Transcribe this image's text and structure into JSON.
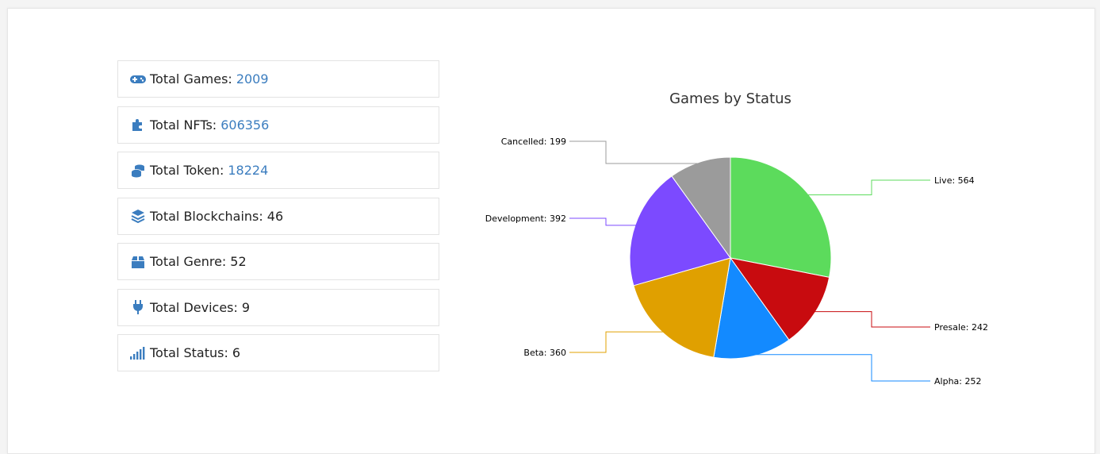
{
  "stats": [
    {
      "label": "Total Games:",
      "value": "2009",
      "icon": "gamepad-icon",
      "value_color": "#3b7dbf"
    },
    {
      "label": "Total NFTs:",
      "value": "606356",
      "icon": "puzzle-piece-icon",
      "value_color": "#3b7dbf"
    },
    {
      "label": "Total Token:",
      "value": "18224",
      "icon": "coins-icon",
      "value_color": "#3b7dbf"
    },
    {
      "label": "Total Blockchains:",
      "value": "46",
      "icon": "layer-group-icon",
      "value_color": "#222222"
    },
    {
      "label": "Total Genre:",
      "value": "52",
      "icon": "box-icon",
      "value_color": "#222222"
    },
    {
      "label": "Total Devices:",
      "value": "9",
      "icon": "plug-icon",
      "value_color": "#222222"
    },
    {
      "label": "Total Status:",
      "value": "6",
      "icon": "signal-icon",
      "value_color": "#222222"
    }
  ],
  "icon_color": "#3b7dbf",
  "chart_data": {
    "type": "pie",
    "title": "Games by Status",
    "slices": [
      {
        "label": "Live",
        "value": 564,
        "color": "#5cdb5c"
      },
      {
        "label": "Presale",
        "value": 242,
        "color": "#c80b0f"
      },
      {
        "label": "Alpha",
        "value": 252,
        "color": "#138aff"
      },
      {
        "label": "Beta",
        "value": 360,
        "color": "#e0a000"
      },
      {
        "label": "Development",
        "value": 392,
        "color": "#7c4aff"
      },
      {
        "label": "Cancelled",
        "value": 199,
        "color": "#9b9b9b"
      }
    ],
    "legend": "none",
    "data_labels": "outside-with-connectors"
  }
}
